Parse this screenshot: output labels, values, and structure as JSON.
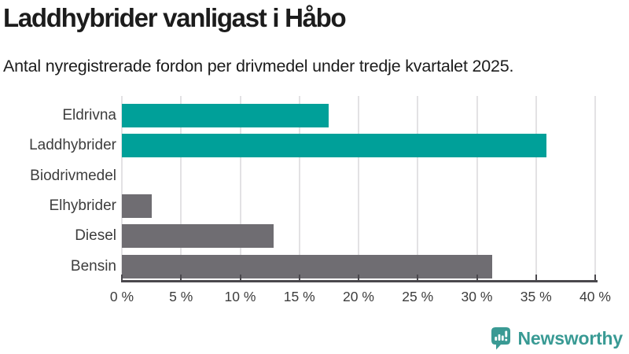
{
  "header": {
    "title": "Laddhybrider vanligast i Håbo",
    "subtitle": "Antal nyregistrerade fordon per drivmedel under tredje kvartalet 2025."
  },
  "chart_data": {
    "type": "bar",
    "orientation": "horizontal",
    "title": "Laddhybrider vanligast i Håbo",
    "subtitle": "Antal nyregistrerade fordon per drivmedel under tredje kvartalet 2025.",
    "categories": [
      "Eldrivna",
      "Laddhybrider",
      "Biodrivmedel",
      "Elhybrider",
      "Diesel",
      "Bensin"
    ],
    "values": [
      17.5,
      35.9,
      0,
      2.5,
      12.8,
      31.3
    ],
    "unit": "%",
    "bar_colors": [
      "#00a099",
      "#00a099",
      "#00a099",
      "#6f6d72",
      "#6f6d72",
      "#6f6d72"
    ],
    "highlight_color": "#00a099",
    "default_color": "#6f6d72",
    "xlim": [
      0,
      40
    ],
    "x_ticks": [
      0,
      5,
      10,
      15,
      20,
      25,
      30,
      35,
      40
    ],
    "x_tick_labels": [
      "0 %",
      "5 %",
      "10 %",
      "15 %",
      "20 %",
      "25 %",
      "30 %",
      "35 %",
      "40 %"
    ],
    "grid": "vertical-on",
    "legend": "none"
  },
  "footer": {
    "brand": "Newsworthy",
    "logo_color": "#3a9a94"
  }
}
